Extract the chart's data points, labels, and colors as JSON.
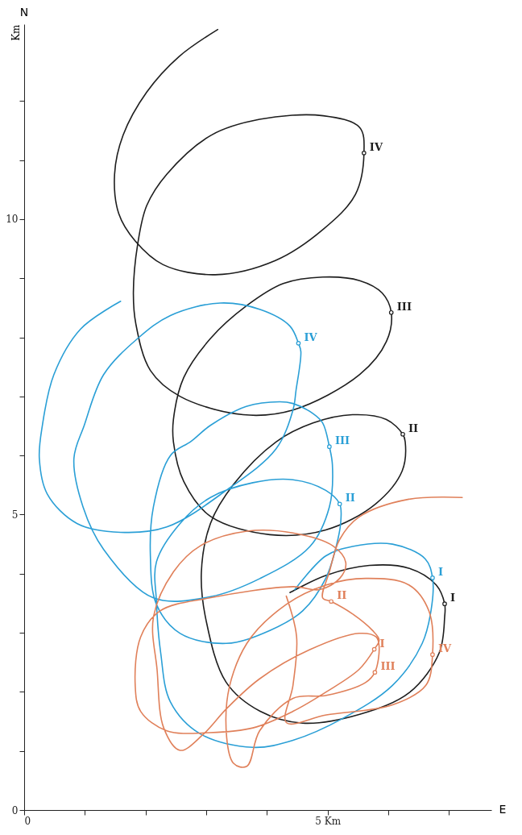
{
  "chart_data": {
    "type": "line",
    "ylabel": "Km",
    "xlim": [
      0,
      7.7
    ],
    "ylim": [
      0,
      13.3
    ],
    "xticks": [
      0,
      {
        "value": 1,
        "label": null
      },
      {
        "value": 2,
        "label": null
      },
      {
        "value": 3,
        "label": null
      },
      {
        "value": 4,
        "label": null
      },
      {
        "value": 5,
        "label": "5 Km"
      },
      {
        "value": 6,
        "label": null
      },
      {
        "value": 7,
        "label": null
      }
    ],
    "yticks": [
      0,
      {
        "value": 1,
        "label": null
      },
      {
        "value": 2,
        "label": null
      },
      {
        "value": 3,
        "label": null
      },
      {
        "value": 4,
        "label": null
      },
      5,
      {
        "value": 6,
        "label": null
      },
      {
        "value": 7,
        "label": null
      },
      {
        "value": 8,
        "label": null
      },
      {
        "value": 9,
        "label": null
      },
      10,
      {
        "value": 11,
        "label": null
      },
      {
        "value": 12,
        "label": null
      }
    ],
    "grid": false,
    "line_style": "solid",
    "series": [
      {
        "color": "#1e1e1e",
        "x": [
          3.19,
          2.55,
          2.02,
          1.63,
          1.49,
          1.56,
          1.83,
          2.29,
          3.15,
          4.14,
          4.93,
          5.46,
          5.6,
          5.53,
          4.93,
          3.88,
          3.08,
          2.35,
          2.02,
          1.87,
          1.8,
          1.84,
          2.08,
          2.57,
          3.61,
          4.43,
          5.53,
          5.97,
          6.05,
          5.9,
          5.53,
          4.92,
          4.27,
          3.66,
          3.07,
          2.63,
          2.46,
          2.46,
          2.63,
          3.07,
          4.05,
          4.97,
          5.79,
          6.23,
          6.28,
          6.24,
          5.97,
          5.41,
          4.76,
          4.15,
          3.45,
          3.07,
          2.92,
          3.0,
          3.33,
          3.89,
          4.59,
          5.53,
          6.35,
          6.84,
          6.93,
          6.93,
          6.79,
          6.35,
          5.69,
          4.97,
          4.38
        ],
        "values": [
          13.21,
          12.75,
          12.15,
          11.42,
          10.76,
          10.09,
          9.63,
          9.23,
          9.06,
          9.3,
          9.83,
          10.42,
          11.12,
          11.55,
          11.75,
          11.69,
          11.42,
          10.76,
          10.23,
          9.57,
          8.76,
          8.23,
          7.44,
          7.0,
          6.69,
          6.77,
          7.37,
          7.93,
          8.42,
          8.75,
          8.96,
          9.02,
          8.91,
          8.53,
          7.98,
          7.32,
          6.61,
          6.23,
          5.56,
          4.97,
          4.66,
          4.74,
          5.18,
          5.74,
          6.23,
          6.36,
          6.61,
          6.69,
          6.55,
          6.23,
          5.51,
          4.85,
          4.02,
          3.2,
          2.16,
          1.67,
          1.47,
          1.62,
          1.99,
          2.66,
          3.27,
          3.49,
          3.81,
          4.09,
          4.14,
          3.97,
          3.68
        ]
      },
      {
        "color": "#2a9fd6",
        "x": [
          1.59,
          0.93,
          0.49,
          0.3,
          0.25,
          0.38,
          0.87,
          1.59,
          2.35,
          3.33,
          4.15,
          4.43,
          4.48,
          4.56,
          4.52,
          4.38,
          3.89,
          3.23,
          2.41,
          1.87,
          1.31,
          0.99,
          0.82,
          0.97,
          1.31,
          2.13,
          3.07,
          3.89,
          4.71,
          5.03,
          5.08,
          5.03,
          4.92,
          4.76,
          4.43,
          4.21,
          3.66,
          3.07,
          2.75,
          2.41,
          2.13,
          2.08,
          2.18,
          2.57,
          3.33,
          4.05,
          4.59,
          4.97,
          5.17,
          5.22,
          5.2,
          4.97,
          4.43,
          3.77,
          3.07,
          2.57,
          2.18,
          2.18,
          2.25,
          2.41,
          2.9,
          3.77,
          4.43,
          5.25,
          6.07,
          6.56,
          6.72,
          6.73,
          6.61,
          6.07,
          5.41,
          4.97,
          4.46
        ],
        "values": [
          8.61,
          8.14,
          7.37,
          6.51,
          5.95,
          5.35,
          4.85,
          4.7,
          4.79,
          5.41,
          6.11,
          6.77,
          7.1,
          7.76,
          7.9,
          8.19,
          8.47,
          8.58,
          8.37,
          7.98,
          7.37,
          6.51,
          5.95,
          5.13,
          4.41,
          3.59,
          3.61,
          3.92,
          4.46,
          5.13,
          5.84,
          6.15,
          6.55,
          6.71,
          6.88,
          6.91,
          6.83,
          6.51,
          6.24,
          6.0,
          5.13,
          4.3,
          3.48,
          2.99,
          2.82,
          3.04,
          3.37,
          3.92,
          4.58,
          4.91,
          5.18,
          5.41,
          5.59,
          5.54,
          5.29,
          4.85,
          4.2,
          3.53,
          2.66,
          1.83,
          1.29,
          1.06,
          1.18,
          1.55,
          2.11,
          2.82,
          3.48,
          3.93,
          4.25,
          4.5,
          4.46,
          4.3,
          3.73
        ]
      },
      {
        "color": "#e0805a",
        "x": [
          7.22,
          6.34,
          5.52,
          5.2,
          5.03,
          4.92,
          5.06,
          5.41,
          5.74,
          5.85,
          5.77,
          5.52,
          4.98,
          4.43,
          3.77,
          3.06,
          2.35,
          1.92,
          1.83,
          1.92,
          2.24,
          3.06,
          4.43,
          4.87,
          5.2,
          5.3,
          5.09,
          4.43,
          3.67,
          2.9,
          2.46,
          2.13,
          2.19,
          2.3,
          2.57,
          2.95,
          3.34,
          3.88,
          4.7,
          5.52,
          5.8,
          5.85,
          5.78,
          5.63,
          4.98,
          4.43,
          3.88,
          3.67,
          3.45,
          3.34,
          3.67,
          4.32,
          4.98,
          5.63,
          6.34,
          6.67,
          6.73,
          6.62,
          6.07,
          4.98,
          4.32,
          4.43,
          4.49,
          4.32
        ],
        "values": [
          5.29,
          5.26,
          4.96,
          4.58,
          4.03,
          3.59,
          3.53,
          3.32,
          3.04,
          2.88,
          2.72,
          2.38,
          2.0,
          1.67,
          1.39,
          1.31,
          1.34,
          1.67,
          2.11,
          2.93,
          3.37,
          3.59,
          3.78,
          3.73,
          3.92,
          4.19,
          4.47,
          4.69,
          4.72,
          4.47,
          4.03,
          3.26,
          2.38,
          1.39,
          1.01,
          1.28,
          1.72,
          2.22,
          2.71,
          2.99,
          2.93,
          2.77,
          2.33,
          2.16,
          1.94,
          1.89,
          1.34,
          0.74,
          0.79,
          1.83,
          2.82,
          3.48,
          3.81,
          3.92,
          3.81,
          3.37,
          2.63,
          2.11,
          1.78,
          1.61,
          1.48,
          2.11,
          2.93,
          3.62
        ]
      }
    ],
    "annotations": [
      "N",
      "E",
      {
        "text": "IV",
        "x": 5.6,
        "y": 11.12
      },
      {
        "text": "III",
        "x": 6.05,
        "y": 8.42
      },
      {
        "text": "II",
        "x": 6.24,
        "y": 6.36
      },
      {
        "text": "I",
        "x": 6.93,
        "y": 3.49
      },
      {
        "text": "IV",
        "x": 4.52,
        "y": 7.9
      },
      {
        "text": "III",
        "x": 5.03,
        "y": 6.15
      },
      {
        "text": "II",
        "x": 5.2,
        "y": 5.18
      },
      {
        "text": "I",
        "x": 6.73,
        "y": 3.93
      },
      {
        "text": "II",
        "x": 5.06,
        "y": 3.53
      },
      {
        "text": "I",
        "x": 5.77,
        "y": 2.72
      },
      {
        "text": "III",
        "x": 5.78,
        "y": 2.33
      },
      {
        "text": "IV",
        "x": 6.73,
        "y": 2.63
      }
    ]
  }
}
